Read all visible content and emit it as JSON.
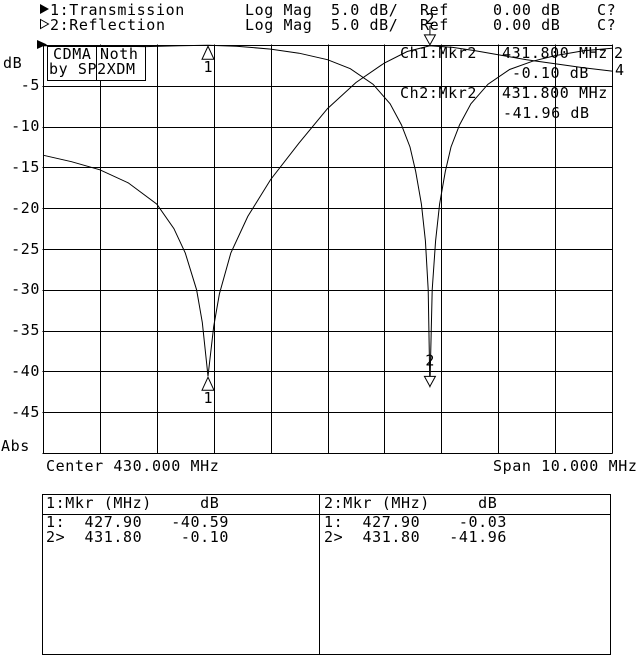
{
  "legend": {
    "rows": [
      {
        "pointer": "filled-right-triangle",
        "label": "1:Transmission",
        "format": "Log Mag",
        "scale": "5.0 dB/",
        "ref_label": "Ref",
        "ref_value": "0.00 dB",
        "status": "C?"
      },
      {
        "pointer": "hollow-right-triangle",
        "label": "2:Reflection",
        "format": "Log Mag",
        "scale": "5.0 dB/",
        "ref_label": "Ref",
        "ref_value": "0.00 dB",
        "status": "C?"
      }
    ]
  },
  "title_box": {
    "cell_a": "CDMA",
    "cell_b": "Noth",
    "line2": "by SP2XDM"
  },
  "y_axis": {
    "unit": "dB",
    "ticks": [
      "-5",
      "-10",
      "-15",
      "-20",
      "-25",
      "-30",
      "-35",
      "-40",
      "-45"
    ],
    "bottom": "Abs"
  },
  "x_axis": {
    "center": "Center 430.000 MHz",
    "span": "Span 10.000 MHz"
  },
  "readouts": {
    "ch1": {
      "label": "Ch1:Mkr2",
      "freq": "431.800 MHz",
      "value": "-0.10 dB"
    },
    "ch2": {
      "label": "Ch2:Mkr2",
      "freq": "431.800 MHz",
      "value": "-41.96 dB"
    }
  },
  "edge_labels": [
    "2",
    "4"
  ],
  "marker_tables": {
    "left": {
      "header": "1:Mkr (MHz)     dB",
      "rows": [
        "1:  427.90   -40.59",
        "2>  431.80    -0.10"
      ]
    },
    "right": {
      "header": "2:Mkr (MHz)     dB",
      "rows": [
        "1:  427.90    -0.03",
        "2>  431.80   -41.96"
      ]
    }
  },
  "colors": {
    "fg": "#000000",
    "bg": "#ffffff"
  },
  "chart_data": {
    "type": "line",
    "title": "CDMA Noth by SP2XDM",
    "xlabel": "Center 430.000 MHz, Span 10.000 MHz",
    "ylabel": "dB",
    "xlim": [
      425,
      435
    ],
    "ylim": [
      -50,
      0
    ],
    "x_divisions": 10,
    "y_divisions": 10,
    "db_per_div": 5,
    "grid": true,
    "series": [
      {
        "name": "1:Transmission",
        "format": "Log Mag",
        "x": [
          425,
          425.5,
          426,
          426.5,
          427,
          427.3,
          427.5,
          427.7,
          427.8,
          427.9,
          428,
          428.1,
          428.3,
          428.6,
          429,
          429.5,
          430,
          430.5,
          431,
          431.4,
          431.8,
          432.2,
          432.6,
          433,
          433.5,
          434,
          434.5,
          435
        ],
        "y": [
          -13.5,
          -14.3,
          -15.3,
          -16.9,
          -19.5,
          -22.5,
          -25.5,
          -30,
          -34,
          -40.59,
          -34.5,
          -30.5,
          -25.5,
          -21,
          -16.5,
          -12,
          -7.8,
          -4.6,
          -2.2,
          -0.8,
          -0.1,
          -0.3,
          -0.7,
          -1.2,
          -1.8,
          -2.3,
          -2.8,
          -3.2
        ]
      },
      {
        "name": "2:Reflection",
        "format": "Log Mag",
        "x": [
          425,
          426,
          426.8,
          427.4,
          427.9,
          428.4,
          429,
          429.5,
          430,
          430.4,
          430.8,
          431.1,
          431.3,
          431.45,
          431.55,
          431.65,
          431.72,
          431.77,
          431.8,
          431.84,
          431.9,
          431.97,
          432.07,
          432.17,
          432.32,
          432.52,
          432.82,
          433.2,
          433.6,
          434,
          434.5,
          435
        ],
        "y": [
          -0.1,
          -0.12,
          -0.2,
          -0.1,
          -0.03,
          -0.15,
          -0.5,
          -1,
          -1.8,
          -2.9,
          -4.8,
          -7.2,
          -9.8,
          -12.5,
          -15.5,
          -19.5,
          -24,
          -30,
          -41.96,
          -30,
          -24,
          -19.5,
          -15.5,
          -12.5,
          -9.8,
          -7.2,
          -4.8,
          -3,
          -2,
          -1.3,
          -0.7,
          -0.4
        ]
      }
    ],
    "markers": [
      {
        "channel": 1,
        "marker": 1,
        "freq_mhz": 427.9,
        "db": -40.59,
        "active": false,
        "label": "1"
      },
      {
        "channel": 1,
        "marker": 2,
        "freq_mhz": 431.8,
        "db": -0.1,
        "active": true,
        "label": "2"
      },
      {
        "channel": 2,
        "marker": 1,
        "freq_mhz": 427.9,
        "db": -0.03,
        "active": false,
        "label": "1"
      },
      {
        "channel": 2,
        "marker": 2,
        "freq_mhz": 431.8,
        "db": -41.96,
        "active": true,
        "label": "2"
      }
    ]
  }
}
